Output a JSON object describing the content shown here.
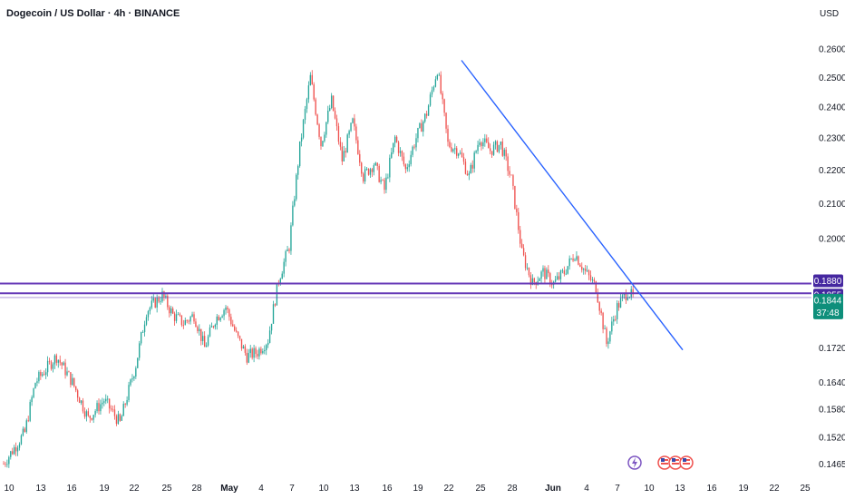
{
  "header": {
    "title": "Dogecoin / US Dollar · 4h · BINANCE",
    "currency": "USD"
  },
  "colors": {
    "up": "#26a69a",
    "down": "#ef5350",
    "trendline": "#2962ff",
    "level_line": "#673ab7",
    "level_badge": "#4527a0",
    "price_badge": "#0e8f7b",
    "axis_text": "#131722"
  },
  "chart_data": {
    "type": "candlestick",
    "symbol": "Dogecoin / US Dollar",
    "interval": "4h",
    "exchange": "BINANCE",
    "y_axis": {
      "scale": "log",
      "ticks": [
        "0.2600",
        "0.2500",
        "0.2400",
        "0.2300",
        "0.2200",
        "0.2100",
        "0.2000",
        "0.1720",
        "0.1640",
        "0.1580",
        "0.1520",
        "0.1465"
      ],
      "range": [
        0.144,
        0.268
      ]
    },
    "x_axis": {
      "ticks": [
        "10",
        "13",
        "16",
        "19",
        "22",
        "25",
        "28",
        "May",
        "4",
        "7",
        "10",
        "13",
        "16",
        "19",
        "22",
        "25",
        "28",
        "Jun",
        "4",
        "7",
        "10",
        "13",
        "16",
        "19",
        "22",
        "25"
      ],
      "bold_ticks": [
        "May",
        "Jun"
      ]
    },
    "price_waypoints": [
      [
        0,
        0.1465
      ],
      [
        4,
        0.153
      ],
      [
        6,
        0.164
      ],
      [
        10,
        0.17
      ],
      [
        13,
        0.164
      ],
      [
        16,
        0.156
      ],
      [
        19,
        0.16
      ],
      [
        22,
        0.155
      ],
      [
        25,
        0.168
      ],
      [
        27,
        0.181
      ],
      [
        30,
        0.185
      ],
      [
        32,
        0.18
      ],
      [
        34,
        0.178
      ],
      [
        36,
        0.18
      ],
      [
        38,
        0.172
      ],
      [
        40,
        0.179
      ],
      [
        42,
        0.182
      ],
      [
        44,
        0.175
      ],
      [
        46,
        0.17
      ],
      [
        48,
        0.171
      ],
      [
        50,
        0.174
      ],
      [
        52,
        0.189
      ],
      [
        54,
        0.198
      ],
      [
        56,
        0.227
      ],
      [
        58,
        0.25
      ],
      [
        60,
        0.228
      ],
      [
        62,
        0.242
      ],
      [
        64,
        0.223
      ],
      [
        66,
        0.235
      ],
      [
        68,
        0.218
      ],
      [
        70,
        0.222
      ],
      [
        72,
        0.214
      ],
      [
        74,
        0.23
      ],
      [
        76,
        0.22
      ],
      [
        78,
        0.23
      ],
      [
        80,
        0.238
      ],
      [
        82,
        0.253
      ],
      [
        84,
        0.228
      ],
      [
        86,
        0.226
      ],
      [
        88,
        0.218
      ],
      [
        90,
        0.23
      ],
      [
        92,
        0.226
      ],
      [
        94,
        0.228
      ],
      [
        96,
        0.217
      ],
      [
        98,
        0.196
      ],
      [
        100,
        0.188
      ],
      [
        102,
        0.191
      ],
      [
        104,
        0.188
      ],
      [
        106,
        0.191
      ],
      [
        108,
        0.196
      ],
      [
        110,
        0.191
      ],
      [
        112,
        0.187
      ],
      [
        114,
        0.173
      ],
      [
        116,
        0.182
      ],
      [
        118,
        0.186
      ],
      [
        119,
        0.1844
      ]
    ],
    "horizontal_levels": [
      {
        "label": "0.1880",
        "value": 0.188
      },
      {
        "label": "0.1855",
        "value": 0.1855
      }
    ],
    "current_price": {
      "label": "0.1844",
      "value": 0.1844,
      "countdown": "37:48"
    },
    "trendline": {
      "start": {
        "date": "May 23",
        "price": 0.256
      },
      "end": {
        "date": "Jun 9",
        "price": 0.1715
      }
    },
    "annotations": [
      "lightning-event-icon",
      "us-flag-event-icon",
      "us-flag-event-icon",
      "us-flag-event-icon"
    ]
  }
}
